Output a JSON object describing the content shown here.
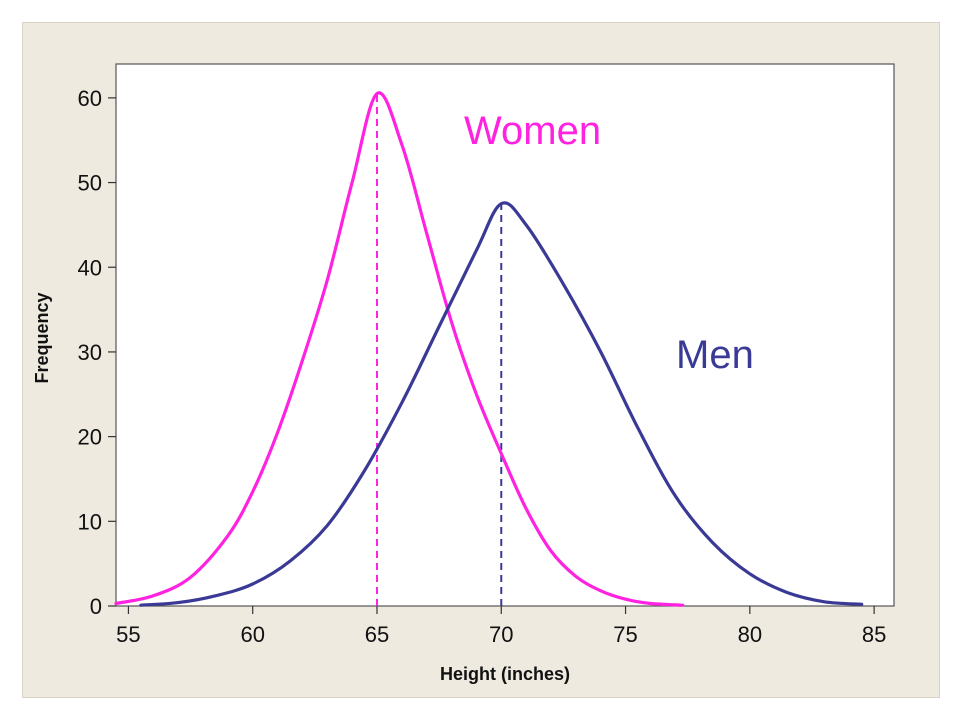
{
  "chart_data": {
    "type": "line",
    "title": "",
    "xlabel": "Height (inches)",
    "ylabel": "Frequency",
    "xlim": [
      54.5,
      85.8
    ],
    "ylim": [
      0,
      64
    ],
    "x_ticks": [
      55,
      60,
      65,
      70,
      75,
      80,
      85
    ],
    "y_ticks": [
      0,
      10,
      20,
      30,
      40,
      50,
      60
    ],
    "grid": false,
    "legend": "none",
    "series": [
      {
        "name": "Women",
        "color": "#ff22e0",
        "mean": 65,
        "peak": 60.5,
        "x": [
          54.5,
          56,
          57.5,
          59,
          60,
          61,
          62,
          63,
          64,
          65,
          66,
          67,
          68,
          69,
          70,
          71,
          72,
          73,
          74,
          75,
          76,
          77.3
        ],
        "y": [
          0.3,
          1.2,
          3.4,
          8.3,
          13.5,
          20.5,
          29,
          38.5,
          50,
          60.5,
          54.5,
          44,
          33.5,
          25,
          18,
          11.5,
          6.5,
          3.5,
          1.8,
          0.8,
          0.3,
          0.1
        ]
      },
      {
        "name": "Men",
        "color": "#3a3a96",
        "mean": 70,
        "peak": 47.5,
        "x": [
          55.5,
          57,
          58.5,
          60,
          61.5,
          63,
          64.5,
          66,
          67.5,
          69,
          70,
          71,
          72.5,
          74,
          75.5,
          77,
          78.5,
          80,
          81.5,
          83,
          84.5
        ],
        "y": [
          0.1,
          0.4,
          1.2,
          2.6,
          5.3,
          9.5,
          16,
          24,
          33,
          42,
          47.5,
          45,
          38,
          30,
          21,
          13,
          7.5,
          3.8,
          1.6,
          0.5,
          0.2
        ]
      }
    ],
    "reference_lines": [
      {
        "series": "Women",
        "x": 65,
        "style": "dashed"
      },
      {
        "series": "Men",
        "x": 70,
        "style": "dashed"
      }
    ]
  }
}
